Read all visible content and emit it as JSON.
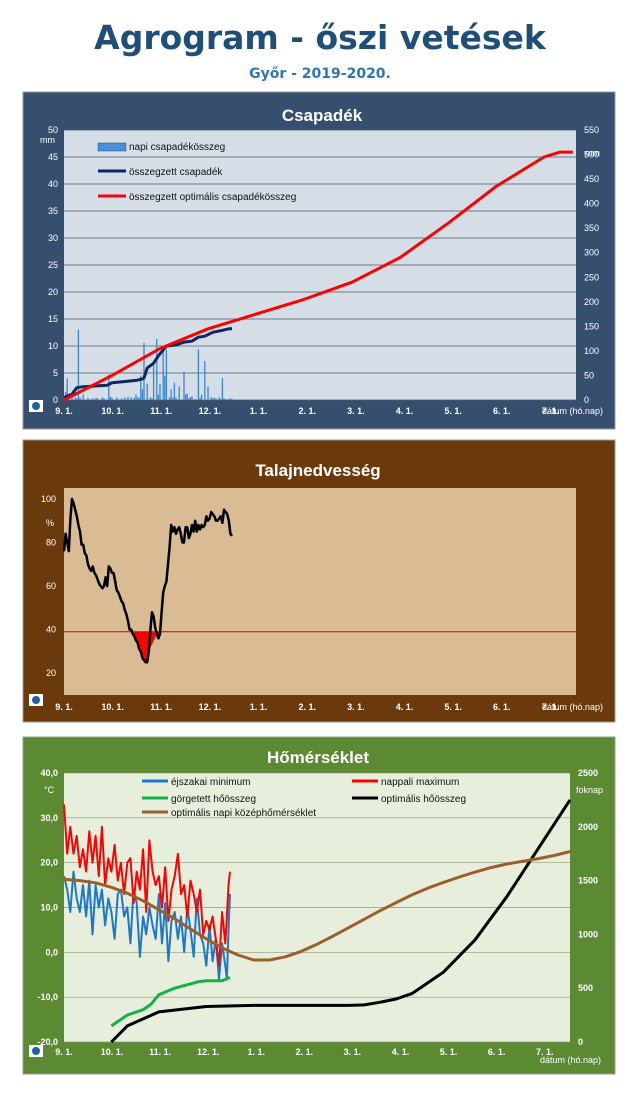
{
  "page": {
    "title": "Agrogram - őszi vetések",
    "subtitle": "Győr - 2019-2020."
  },
  "colors": {
    "precip_bg": "#364f6e",
    "precip_plot": "#d5dde6",
    "soil_bg": "#6b3a0c",
    "soil_plot": "#d9bc94",
    "temp_bg": "#5b8a32",
    "temp_plot": "#e7efdc"
  },
  "chart_data": [
    {
      "type": "bar",
      "title": "Csapadék",
      "ylabel_left": "mm",
      "ylabel_right": "mm",
      "xlabel": "dátum (hó.nap)",
      "x_ticks": [
        "9. 1.",
        "10. 1.",
        "11. 1.",
        "12. 1.",
        "1. 1.",
        "2. 1.",
        "3. 1.",
        "4. 1.",
        "5. 1.",
        "6. 1.",
        "7. 1."
      ],
      "y_left_ticks": [
        "0",
        "5",
        "10",
        "15",
        "20",
        "25",
        "30",
        "35",
        "40",
        "45",
        "50"
      ],
      "y_right_ticks": [
        "0",
        "50",
        "100",
        "150",
        "200",
        "250",
        "300",
        "350",
        "400",
        "450",
        "500",
        "550"
      ],
      "ylim_left": [
        0,
        50
      ],
      "ylim_right": [
        0,
        550
      ],
      "xlim_days": [
        0,
        320
      ],
      "legend": [
        "napi csapadékösszeg",
        "összegzett csapadék",
        "összegzett optimális csapadékösszeg"
      ],
      "daily_precip": {
        "days": [
          1,
          2,
          3,
          5,
          7,
          8,
          9,
          10,
          12,
          15,
          18,
          20,
          21,
          24,
          25,
          28,
          29,
          30,
          33,
          36,
          38,
          40,
          42,
          44,
          45,
          46,
          47,
          48,
          49,
          50,
          52,
          54,
          55,
          56,
          58,
          59,
          60,
          62,
          63,
          64,
          66,
          67,
          68,
          69,
          70,
          72,
          75,
          76,
          77,
          78,
          79,
          80,
          82,
          84,
          85,
          86,
          88,
          90,
          92,
          93,
          94,
          95,
          97,
          98,
          99,
          100,
          101,
          103,
          104,
          105
        ],
        "values": [
          1.5,
          4,
          0.5,
          0.8,
          0.5,
          0.3,
          13,
          0.5,
          1,
          0.4,
          0.3,
          0.4,
          0.3,
          0.5,
          0.3,
          4.7,
          0.6,
          0.4,
          0.5,
          0.3,
          0.5,
          0.6,
          0.5,
          0.4,
          1,
          0.5,
          0.4,
          4.5,
          2,
          10.6,
          3,
          0.5,
          0.3,
          6.5,
          11.3,
          1,
          3,
          9,
          4.5,
          9.3,
          0.5,
          2,
          0.4,
          3.2,
          0.5,
          2.5,
          5.2,
          1,
          1.2,
          0.3,
          0.5,
          0.7,
          0.2,
          9.4,
          0.4,
          1,
          7.2,
          2.5,
          0.5,
          0.3,
          0.4,
          0.3,
          0.5,
          0.2,
          4.1,
          0.3,
          0.2,
          0.2,
          0.3,
          0.2
        ]
      },
      "series": [
        {
          "name": "összegzett csapadék",
          "axis": "right",
          "x": [
            0,
            5,
            8,
            12,
            27,
            30,
            45,
            49,
            50,
            52,
            56,
            59,
            64,
            70,
            75,
            80,
            84,
            88,
            93,
            99,
            103,
            105
          ],
          "y": [
            5,
            12,
            25,
            27,
            30,
            35,
            40,
            43,
            45,
            65,
            75,
            90,
            110,
            112,
            118,
            120,
            128,
            130,
            138,
            142,
            145,
            145
          ]
        },
        {
          "name": "összegzett optimális csapadékösszeg",
          "axis": "right",
          "x": [
            0,
            30,
            60,
            90,
            120,
            150,
            180,
            210,
            240,
            270,
            300,
            310,
            318
          ],
          "y": [
            0,
            50,
            105,
            145,
            175,
            205,
            240,
            290,
            360,
            435,
            495,
            505,
            505
          ]
        }
      ]
    },
    {
      "type": "line",
      "title": "Talajnedvesség",
      "ylabel": "%",
      "xlabel": "dátum (hó.nap)",
      "x_ticks": [
        "9. 1.",
        "10. 1.",
        "11. 1.",
        "12. 1.",
        "1. 1.",
        "2. 1.",
        "3. 1.",
        "4. 1.",
        "5. 1.",
        "6. 1.",
        "7. 1."
      ],
      "y_ticks": [
        "20",
        "40",
        "60",
        "80",
        "100"
      ],
      "ylim": [
        10,
        105
      ],
      "xlim_days": [
        0,
        320
      ],
      "threshold": 39,
      "series": [
        {
          "name": "",
          "x": [
            0,
            1,
            2,
            3,
            4,
            5,
            6,
            7,
            8,
            9,
            10,
            11,
            12,
            13,
            14,
            15,
            16,
            17,
            18,
            19,
            20,
            21,
            22,
            23,
            24,
            25,
            26,
            27,
            28,
            29,
            30,
            31,
            32,
            33,
            34,
            35,
            36,
            37,
            38,
            39,
            40,
            41,
            42,
            43,
            44,
            45,
            46,
            47,
            48,
            49,
            50,
            51,
            52,
            53,
            54,
            55,
            56,
            57,
            58,
            59,
            60,
            61,
            62,
            63,
            64,
            65,
            66,
            67,
            68,
            69,
            70,
            71,
            72,
            73,
            74,
            75,
            76,
            77,
            78,
            79,
            80,
            81,
            82,
            83,
            84,
            85,
            86,
            87,
            88,
            89,
            90,
            91,
            92,
            93,
            94,
            95,
            96,
            97,
            98,
            99,
            100,
            101,
            102,
            103,
            104,
            105
          ],
          "y": [
            76,
            84,
            80,
            76,
            91,
            100,
            98,
            95,
            92,
            88,
            85,
            79,
            79,
            75,
            74,
            70,
            68,
            67,
            69,
            66,
            65,
            63,
            61,
            60,
            59,
            60,
            64,
            60,
            69,
            68,
            66,
            66,
            62,
            58,
            57,
            55,
            53,
            52,
            49,
            47,
            44,
            40,
            40,
            38,
            37,
            35,
            34,
            31,
            30,
            27,
            26,
            25,
            25,
            30,
            40,
            48,
            46,
            41,
            38,
            36,
            38,
            48,
            57,
            60,
            62,
            70,
            78,
            88,
            85,
            87,
            84,
            86,
            87,
            84,
            80,
            80,
            87,
            87,
            82,
            84,
            88,
            85,
            90,
            85,
            88,
            86,
            88,
            87,
            88,
            92,
            90,
            91,
            94,
            93,
            92,
            90,
            90,
            91,
            92,
            89,
            95,
            94,
            93,
            90,
            84,
            83
          ]
        }
      ]
    },
    {
      "type": "line",
      "title": "Hőmérséklet",
      "ylabel_left": "°C",
      "ylabel_right": "foknap",
      "xlabel": "dátum (hó.nap)",
      "x_ticks": [
        "9. 1.",
        "10. 1.",
        "11. 1.",
        "12. 1.",
        "1. 1.",
        "2. 1.",
        "3. 1.",
        "4. 1.",
        "5. 1.",
        "6. 1.",
        "7. 1."
      ],
      "y_left_ticks": [
        "-20,0",
        "-10,0",
        "0,0",
        "10,0",
        "20,0",
        "30,0",
        "40,0"
      ],
      "y_right_ticks": [
        "0",
        "500",
        "1000",
        "1500",
        "2000",
        "2500"
      ],
      "ylim_left": [
        -20,
        40
      ],
      "ylim_right": [
        0,
        2500
      ],
      "xlim_days": [
        0,
        320
      ],
      "legend": [
        "éjszakai minimum",
        "nappali maximum",
        "görgetett hőösszeg",
        "optimális hőösszeg",
        "optimális napi középhőmérséklet"
      ],
      "series": [
        {
          "name": "éjszakai minimum",
          "axis": "left",
          "x": [
            0,
            2,
            4,
            6,
            8,
            10,
            12,
            14,
            16,
            18,
            20,
            22,
            24,
            26,
            28,
            30,
            32,
            34,
            36,
            38,
            40,
            42,
            44,
            46,
            48,
            50,
            52,
            54,
            56,
            58,
            60,
            62,
            64,
            66,
            68,
            70,
            72,
            74,
            76,
            78,
            80,
            82,
            84,
            86,
            88,
            90,
            92,
            94,
            96,
            98,
            100,
            102,
            103,
            104,
            105
          ],
          "y": [
            17,
            14,
            9,
            18,
            12,
            9,
            15,
            8,
            16,
            4,
            15,
            10,
            14,
            6,
            12,
            9,
            3,
            13,
            14,
            8,
            10,
            2,
            14,
            11,
            -1,
            8,
            4,
            10,
            6,
            3,
            13,
            2,
            11,
            -2,
            7,
            9,
            3,
            8,
            0,
            10,
            5,
            -1,
            12,
            4,
            2,
            -3,
            6,
            -2,
            3,
            -6,
            2,
            -3,
            -6,
            5,
            13
          ]
        },
        {
          "name": "nappali maximum",
          "axis": "left",
          "x": [
            0,
            2,
            4,
            6,
            8,
            10,
            12,
            14,
            16,
            18,
            20,
            22,
            24,
            26,
            28,
            30,
            32,
            34,
            36,
            38,
            40,
            42,
            44,
            46,
            48,
            50,
            52,
            54,
            56,
            58,
            60,
            62,
            64,
            66,
            68,
            70,
            72,
            74,
            76,
            78,
            80,
            82,
            84,
            86,
            88,
            90,
            92,
            94,
            96,
            98,
            100,
            102,
            103,
            104,
            105
          ],
          "y": [
            33,
            22,
            28,
            22,
            26,
            19,
            23,
            18,
            27,
            20,
            26,
            17,
            28,
            15,
            21,
            18,
            24,
            16,
            20,
            13,
            20,
            21,
            11,
            18,
            14,
            23,
            9,
            25,
            18,
            15,
            17,
            10,
            19,
            7,
            14,
            17,
            22,
            13,
            15,
            8,
            16,
            13,
            9,
            14,
            4,
            7,
            5,
            8,
            3,
            -3,
            9,
            2,
            8,
            15,
            18
          ]
        },
        {
          "name": "görgetett hőösszeg",
          "axis": "right",
          "x": [
            30,
            40,
            50,
            55,
            60,
            65,
            70,
            75,
            80,
            85,
            90,
            95,
            100,
            105
          ],
          "y": [
            150,
            250,
            300,
            350,
            440,
            470,
            500,
            520,
            540,
            560,
            570,
            570,
            570,
            600
          ]
        },
        {
          "name": "optimális hőösszeg",
          "axis": "right",
          "x": [
            30,
            40,
            60,
            90,
            120,
            150,
            180,
            190,
            200,
            210,
            220,
            240,
            260,
            280,
            300,
            320
          ],
          "y": [
            0,
            150,
            280,
            330,
            340,
            340,
            340,
            345,
            370,
            400,
            450,
            650,
            950,
            1350,
            1800,
            2250
          ]
        },
        {
          "name": "optimális napi középhőmérséklet",
          "axis": "left",
          "x": [
            0,
            10,
            20,
            30,
            40,
            50,
            60,
            70,
            80,
            90,
            100,
            110,
            120,
            130,
            140,
            150,
            160,
            170,
            180,
            190,
            200,
            210,
            220,
            230,
            240,
            250,
            260,
            270,
            280,
            290,
            300,
            310,
            320
          ],
          "y": [
            16.3,
            16,
            15.5,
            14.5,
            13.2,
            11.5,
            9.5,
            7.5,
            5.2,
            3,
            1,
            -0.6,
            -1.7,
            -1.7,
            -1,
            0.2,
            1.8,
            3.6,
            5.5,
            7.4,
            9.3,
            11.1,
            12.8,
            14.3,
            15.6,
            16.8,
            17.9,
            18.9,
            19.7,
            20.3,
            20.9,
            21.6,
            22.5
          ]
        }
      ]
    }
  ]
}
